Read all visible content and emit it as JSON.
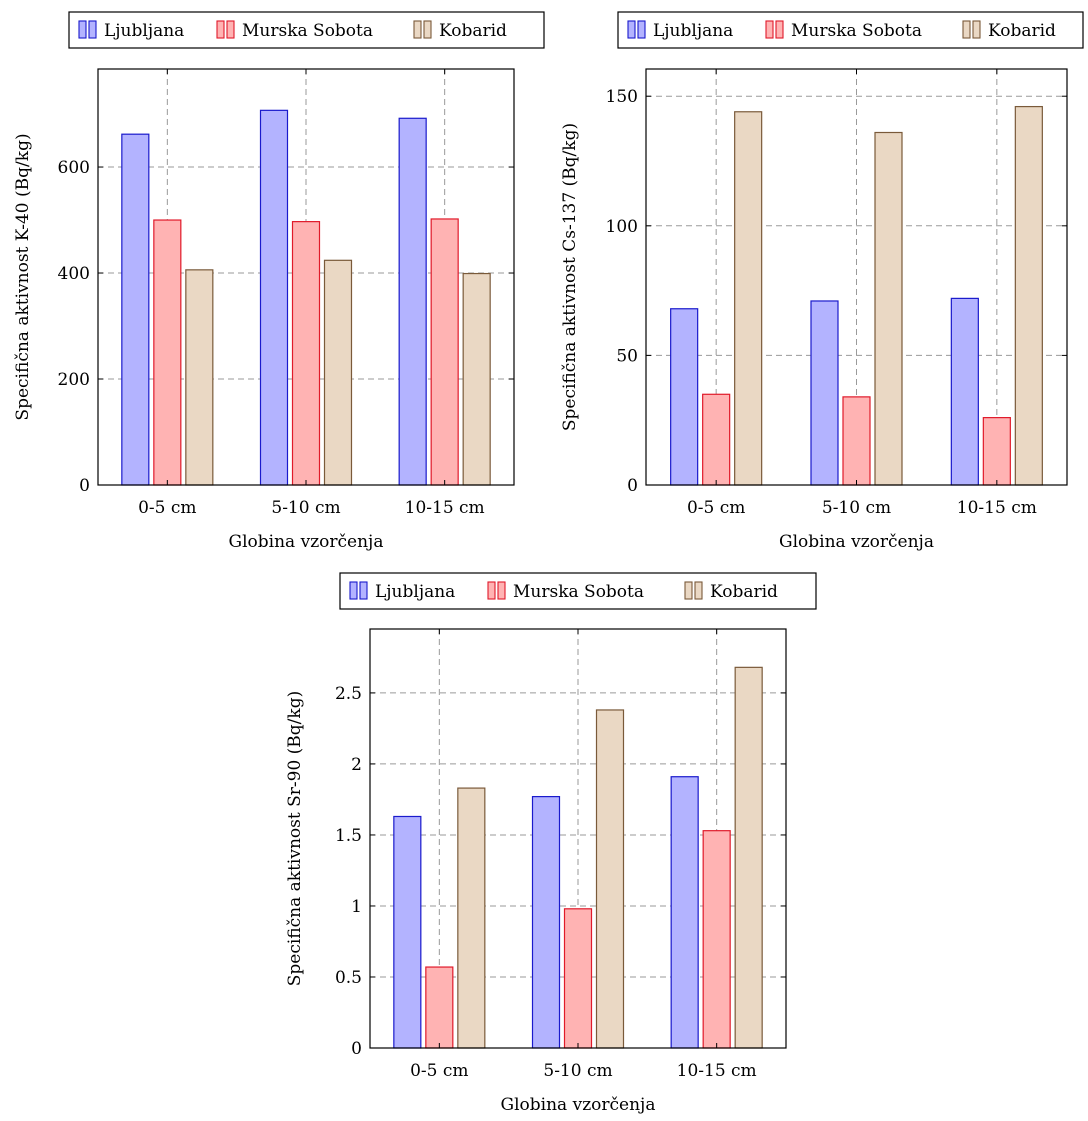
{
  "colors": {
    "Ljubljana": {
      "fill": "#b3b3ff",
      "stroke": "#1a1acc"
    },
    "Murska Sobota": {
      "fill": "#ffb3b3",
      "stroke": "#e01a2a"
    },
    "Kobarid": {
      "fill": "#ead8c4",
      "stroke": "#7a5a3a"
    }
  },
  "chart_data": [
    {
      "type": "bar",
      "categories": [
        "0-5 cm",
        "5-10 cm",
        "10-15 cm"
      ],
      "series": [
        {
          "name": "Ljubljana",
          "values": [
            662,
            707,
            692
          ]
        },
        {
          "name": "Murska Sobota",
          "values": [
            500,
            497,
            502
          ]
        },
        {
          "name": "Kobarid",
          "values": [
            406,
            424,
            399
          ]
        }
      ],
      "xlabel": "Globina vzorčenja",
      "ylabel": "Specifična aktivnost K-40 (Bq/kg)",
      "ylim": [
        0,
        785
      ],
      "yticks": [
        0,
        200,
        400,
        600
      ],
      "ytick_labels": [
        "0",
        "200",
        "400",
        "600"
      ],
      "grid": true,
      "legend": "top"
    },
    {
      "type": "bar",
      "categories": [
        "0-5 cm",
        "5-10 cm",
        "10-15 cm"
      ],
      "series": [
        {
          "name": "Ljubljana",
          "values": [
            68,
            71,
            72
          ]
        },
        {
          "name": "Murska Sobota",
          "values": [
            35,
            34,
            26
          ]
        },
        {
          "name": "Kobarid",
          "values": [
            144,
            136,
            146
          ]
        }
      ],
      "xlabel": "Globina vzorčenja",
      "ylabel": "Specifična aktivnost Cs-137 (Bq/kg)",
      "ylim": [
        0,
        160.5
      ],
      "yticks": [
        0,
        50,
        100,
        150
      ],
      "ytick_labels": [
        "0",
        "50",
        "100",
        "150"
      ],
      "grid": true,
      "legend": "top"
    },
    {
      "type": "bar",
      "categories": [
        "0-5 cm",
        "5-10 cm",
        "10-15 cm"
      ],
      "series": [
        {
          "name": "Ljubljana",
          "values": [
            1.63,
            1.77,
            1.91
          ]
        },
        {
          "name": "Murska Sobota",
          "values": [
            0.57,
            0.98,
            1.53
          ]
        },
        {
          "name": "Kobarid",
          "values": [
            1.83,
            2.38,
            2.68
          ]
        }
      ],
      "xlabel": "Globina vzorčenja",
      "ylabel": "Specifična aktivnost Sr-90 (Bq/kg)",
      "ylim": [
        0,
        2.95
      ],
      "yticks": [
        0,
        0.5,
        1,
        1.5,
        2,
        2.5
      ],
      "ytick_labels": [
        "0",
        "0.5",
        "1",
        "1.5",
        "2",
        "2.5"
      ],
      "grid": true,
      "legend": "top"
    }
  ]
}
